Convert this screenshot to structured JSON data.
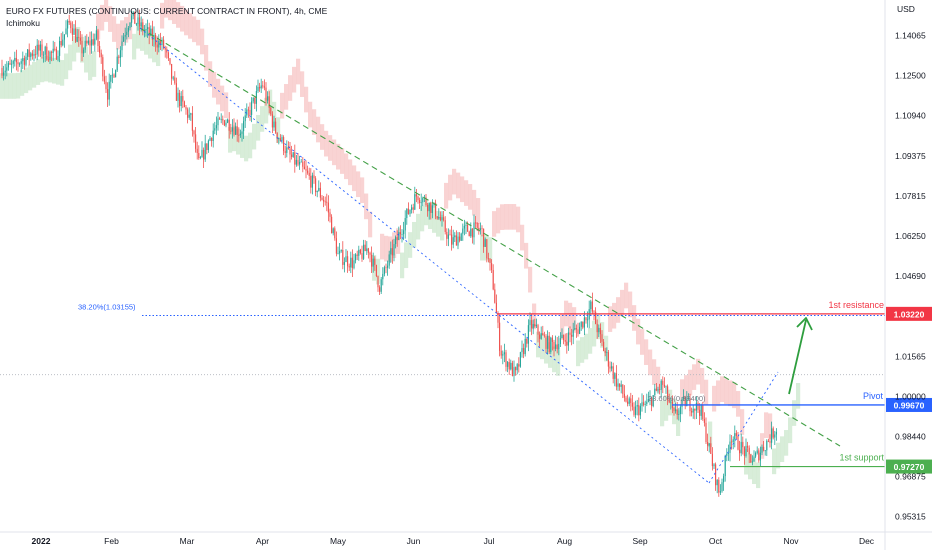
{
  "header": {
    "title": "EURO FX FUTURES (CONTINUOUS: CURRENT CONTRACT IN FRONT), 4h, CME",
    "indicator": "Ichimoku",
    "currency": "USD"
  },
  "chart_data": {
    "type": "candlestick",
    "ylim": [
      0.9472,
      1.1545
    ],
    "y_ticks": [
      {
        "value": 1.14065,
        "label": "1.14065"
      },
      {
        "value": 1.125,
        "label": "1.12500"
      },
      {
        "value": 1.1094,
        "label": "1.10940"
      },
      {
        "value": 1.09375,
        "label": "1.09375"
      },
      {
        "value": 1.07815,
        "label": "1.07815"
      },
      {
        "value": 1.0625,
        "label": "1.06250"
      },
      {
        "value": 1.0469,
        "label": "1.04690"
      },
      {
        "value": 1.01565,
        "label": "1.01565"
      },
      {
        "value": 1.0,
        "label": "1.00000"
      },
      {
        "value": 0.9844,
        "label": "0.98440"
      },
      {
        "value": 0.96875,
        "label": "0.96875"
      },
      {
        "value": 0.95315,
        "label": "0.95315"
      }
    ],
    "x_ticks": [
      {
        "t": 0,
        "label": "2022",
        "bold": true
      },
      {
        "t": 1.0,
        "label": "Feb"
      },
      {
        "t": 2.0,
        "label": "Mar"
      },
      {
        "t": 3.0,
        "label": "Apr"
      },
      {
        "t": 4.0,
        "label": "May"
      },
      {
        "t": 5.0,
        "label": "Jun"
      },
      {
        "t": 6.0,
        "label": "Jul"
      },
      {
        "t": 7.0,
        "label": "Aug"
      },
      {
        "t": 8.0,
        "label": "Sep"
      },
      {
        "t": 9.0,
        "label": "Oct"
      },
      {
        "t": 10.0,
        "label": "Nov"
      },
      {
        "t": 11.0,
        "label": "Dec"
      }
    ],
    "price_path": [
      [
        -0.35,
        1.128
      ],
      [
        0.0,
        1.135
      ],
      [
        0.25,
        1.133
      ],
      [
        0.45,
        1.146
      ],
      [
        0.6,
        1.135
      ],
      [
        0.8,
        1.14
      ],
      [
        0.95,
        1.118
      ],
      [
        1.15,
        1.14
      ],
      [
        1.25,
        1.148
      ],
      [
        1.5,
        1.141
      ],
      [
        1.7,
        1.136
      ],
      [
        1.85,
        1.118
      ],
      [
        2.05,
        1.108
      ],
      [
        2.15,
        1.09
      ],
      [
        2.35,
        1.104
      ],
      [
        2.5,
        1.108
      ],
      [
        2.7,
        1.103
      ],
      [
        2.9,
        1.116
      ],
      [
        3.0,
        1.122
      ],
      [
        3.15,
        1.105
      ],
      [
        3.35,
        1.094
      ],
      [
        3.6,
        1.086
      ],
      [
        3.85,
        1.075
      ],
      [
        4.0,
        1.055
      ],
      [
        4.2,
        1.052
      ],
      [
        4.4,
        1.058
      ],
      [
        4.55,
        1.043
      ],
      [
        4.7,
        1.055
      ],
      [
        4.9,
        1.07
      ],
      [
        5.05,
        1.079
      ],
      [
        5.3,
        1.072
      ],
      [
        5.5,
        1.06
      ],
      [
        5.7,
        1.065
      ],
      [
        5.9,
        1.065
      ],
      [
        6.05,
        1.045
      ],
      [
        6.15,
        1.018
      ],
      [
        6.35,
        1.008
      ],
      [
        6.55,
        1.028
      ],
      [
        6.8,
        1.02
      ],
      [
        7.0,
        1.022
      ],
      [
        7.2,
        1.027
      ],
      [
        7.35,
        1.035
      ],
      [
        7.5,
        1.02
      ],
      [
        7.7,
        1.005
      ],
      [
        7.9,
        0.994
      ],
      [
        8.1,
        0.997
      ],
      [
        8.3,
        1.005
      ],
      [
        8.45,
        0.992
      ],
      [
        8.6,
        0.998
      ],
      [
        8.8,
        0.995
      ],
      [
        8.95,
        0.975
      ],
      [
        9.05,
        0.962
      ],
      [
        9.2,
        0.985
      ],
      [
        9.4,
        0.978
      ],
      [
        9.5,
        0.975
      ],
      [
        9.7,
        0.983
      ],
      [
        9.85,
        0.99
      ],
      [
        10.0,
        1.009
      ]
    ],
    "annotations": {
      "fib_label": "38.20%(1.03155)",
      "fib_level": 1.03155,
      "fib_mid_label": "23.60%(0.99400)",
      "resistance_label": "1st resistance",
      "resistance_value": "1.03220",
      "resistance_level": 1.0322,
      "pivot_label": "Pivot",
      "pivot_value": "0.99670",
      "pivot_level": 0.9967,
      "support_label": "1st support",
      "support_value": "0.97270",
      "support_level": 0.9727,
      "current_price_level": 1.0085
    },
    "colors": {
      "up": "#26a69a",
      "down": "#ef5350",
      "resistance": "#f23645",
      "pivot": "#2962ff",
      "support": "#4caf50",
      "green_dash": "#43a047",
      "blue_dot": "#2962ff",
      "fib": "#2962ff",
      "cloud_red": "#f7c1c1",
      "cloud_green": "#c8e6c9",
      "axis_text": "#131722"
    }
  }
}
